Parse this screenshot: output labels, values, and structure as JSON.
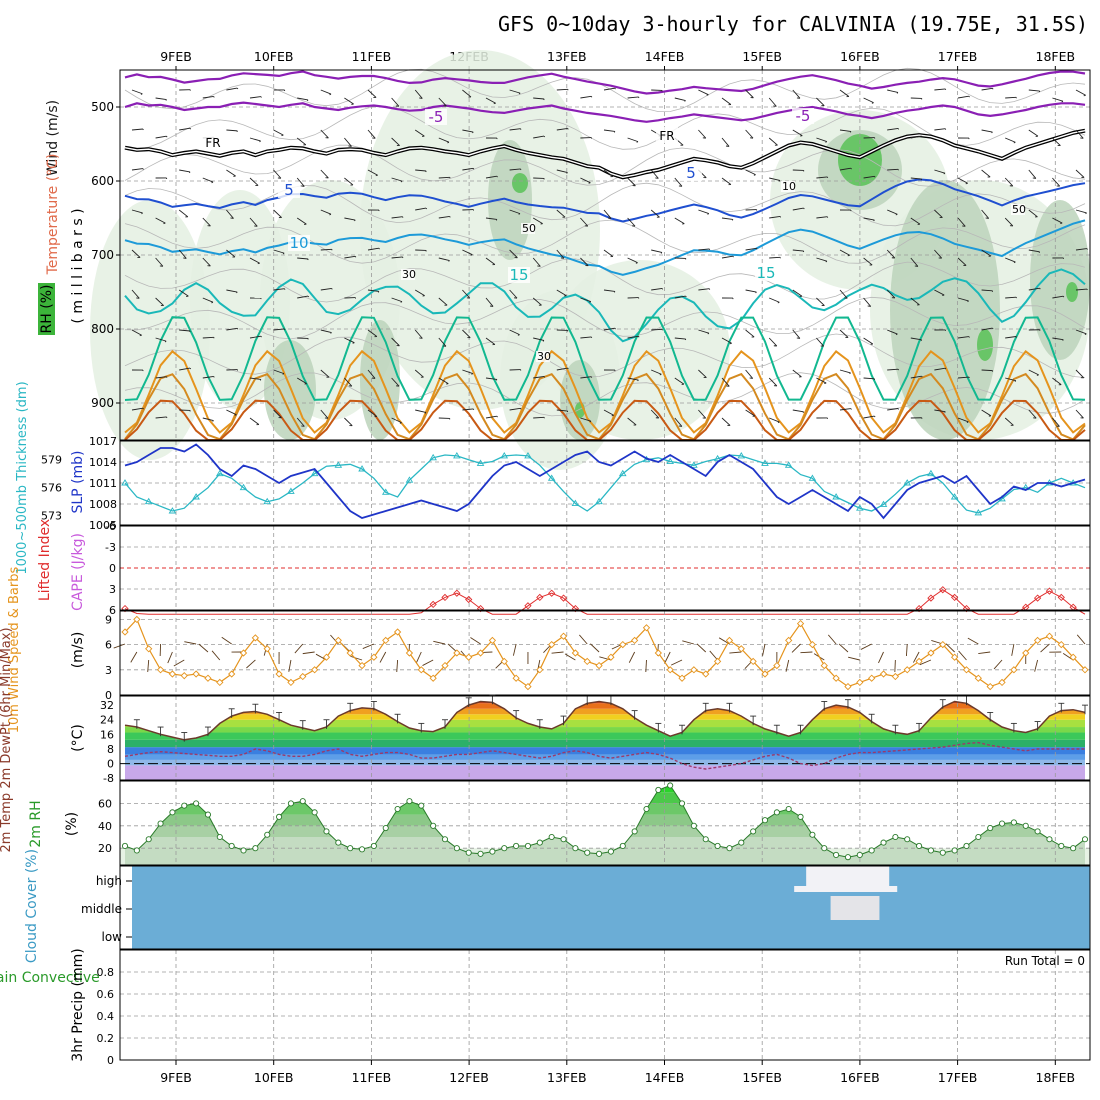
{
  "title": "GFS 0~10day 3-hourly for CALVINIA (19.75E, 31.5S)",
  "dates": [
    "9FEB",
    "10FEB",
    "11FEB",
    "12FEB",
    "13FEB",
    "14FEB",
    "15FEB",
    "16FEB",
    "17FEB",
    "18FEB"
  ],
  "colors": {
    "frame": "#000000",
    "grid": "#9a9a9a",
    "rh_light": "#e4f0e2",
    "rh_mid": "#bcd4bb",
    "rh_dark": "#7fb07c",
    "rh_bright": "#59c257",
    "slp": "#1f35c8",
    "thick": "#2ab7c4",
    "cape": "#c85adc",
    "li": "#e02d2d",
    "wind10": "#e5941d",
    "barb": "#5a3a1a",
    "temp": "#6b3a2a",
    "dew": "#9b3a6a",
    "cloud_bg": "#6badd6",
    "cloud": "#f2f2f6",
    "rh2m": "#5cc85a"
  },
  "chart_data": [
    {
      "panel": "upper_air",
      "type": "heatmap",
      "ylabel_wind": "Wind (m/s)",
      "ylabel_temp": "Temperature (°C)",
      "ylabel_rh": "RH (%)",
      "ylabel_p": "( m i l l i b a r s )",
      "yticks": [
        500,
        600,
        700,
        800,
        900
      ],
      "ylim": [
        450,
        950
      ],
      "contour_labels": [
        "-5",
        "-5",
        "FR",
        "FR",
        "5",
        "5",
        "10",
        "15",
        "15",
        "10",
        "50",
        "30",
        "30",
        "50"
      ],
      "freezing_level_mb": [
        555,
        558,
        557,
        560,
        565,
        562,
        560,
        563,
        566,
        562,
        560,
        565,
        560,
        558,
        555,
        556,
        560,
        563,
        558,
        557,
        558,
        562,
        565,
        560,
        556,
        555,
        557,
        560,
        562,
        565,
        560,
        556,
        553,
        558,
        562,
        565,
        568,
        570,
        575,
        580,
        582,
        590,
        595,
        592,
        588,
        585,
        580,
        575,
        570,
        572,
        575,
        580,
        582,
        576,
        568,
        560,
        552,
        548,
        550,
        555,
        560,
        565,
        568,
        560,
        552,
        545,
        540,
        538,
        540,
        545,
        552,
        556,
        560,
        565,
        570,
        562,
        555,
        550,
        545,
        540,
        535,
        532
      ],
      "iso_minus5_mb": [
        500,
        495,
        498,
        497,
        500,
        504,
        502,
        500,
        500,
        496,
        494,
        496,
        498,
        500,
        497,
        495,
        500,
        502,
        504,
        501,
        499,
        498,
        500,
        503,
        505,
        504,
        500,
        498,
        500,
        502,
        505,
        507,
        508,
        505,
        502,
        500,
        498,
        502,
        505,
        508,
        510,
        512,
        515,
        518,
        520,
        518,
        515,
        513,
        510,
        512,
        514,
        516,
        518,
        516,
        512,
        508,
        505,
        502,
        500,
        503,
        506,
        510,
        512,
        515,
        512,
        508,
        505,
        503,
        500,
        498,
        500,
        505,
        510,
        512,
        510,
        507,
        504,
        500,
        497,
        495,
        495,
        497
      ]
    },
    {
      "panel": "slp_thickness",
      "type": "line",
      "ylabel_left": "1000~500mb\nThickness (dm)",
      "ylabel_right": "SLP (mb)",
      "yticks_left": [
        573,
        576,
        579
      ],
      "yticks_right": [
        1005,
        1008,
        1011,
        1014,
        1017
      ],
      "series": [
        {
          "name": "SLP (mb)",
          "ylim": [
            1005,
            1017
          ],
          "values": [
            1013.5,
            1014,
            1015,
            1016,
            1016,
            1015.5,
            1016.5,
            1015,
            1013,
            1012,
            1013.5,
            1013,
            1012,
            1011,
            1012,
            1012.5,
            1013,
            1011,
            1009,
            1007,
            1006,
            1006.5,
            1007,
            1007.5,
            1008,
            1008.5,
            1008,
            1007.5,
            1007,
            1008,
            1010,
            1012,
            1013.5,
            1014,
            1013,
            1012,
            1013,
            1014,
            1015,
            1015.5,
            1014,
            1013.5,
            1014.5,
            1015.5,
            1014.5,
            1014,
            1015,
            1014,
            1013,
            1012,
            1014,
            1015,
            1014,
            1013,
            1011,
            1009,
            1008,
            1009,
            1010,
            1009,
            1008,
            1007,
            1009,
            1008,
            1006,
            1008,
            1010,
            1011,
            1011.5,
            1012,
            1011,
            1012,
            1010,
            1008,
            1009,
            1010.5,
            1010,
            1011,
            1011,
            1010.5,
            1011,
            1011.5
          ]
        },
        {
          "name": "Thickness (dm)",
          "ylim": [
            572,
            581
          ],
          "values": [
            576.5,
            575,
            574.5,
            574,
            573.5,
            573.8,
            575,
            576,
            577.5,
            577,
            576,
            575,
            574.5,
            574.8,
            575.6,
            576.5,
            577.5,
            578.3,
            578.4,
            578.5,
            578,
            577,
            575.5,
            575,
            576.8,
            578,
            579.2,
            579.5,
            579.4,
            579,
            578.6,
            578.8,
            579.4,
            579.5,
            579.4,
            578.4,
            577,
            575.6,
            574.3,
            573.5,
            574.5,
            576,
            577.5,
            578.5,
            579,
            579.2,
            578.8,
            578.6,
            578.4,
            578.8,
            579.1,
            579.5,
            579.4,
            579,
            578.6,
            578.6,
            578.4,
            577.4,
            577,
            575.6,
            575,
            574.4,
            573.8,
            573.5,
            574.2,
            575.3,
            576.5,
            577.2,
            577.5,
            576.5,
            575,
            573.6,
            573.3,
            573.8,
            574.8,
            575.8,
            576,
            575.5,
            576.5,
            577,
            576.5,
            576
          ]
        }
      ]
    },
    {
      "panel": "cape_li",
      "type": "line",
      "ylabel_left": "CAPE (J/kg)",
      "ylabel_right": "Lifted Index",
      "yticks": [
        -6,
        -3,
        0,
        3,
        6
      ],
      "ylim": [
        6,
        -6
      ],
      "series": [
        {
          "name": "Lifted Index",
          "values": [
            5.8,
            6.5,
            6.6,
            6.6,
            6.6,
            6.6,
            6.6,
            6.6,
            6.6,
            6.6,
            6.6,
            6.6,
            6.6,
            6.6,
            6.6,
            6.6,
            6.6,
            6.6,
            6.6,
            6.6,
            6.6,
            6.6,
            6.6,
            6.6,
            6.6,
            6.4,
            5.2,
            4.2,
            3.6,
            4.5,
            5.8,
            6.6,
            6.6,
            6.6,
            5.4,
            4.2,
            3.6,
            4.3,
            5.8,
            6.6,
            6.6,
            6.6,
            6.6,
            6.6,
            6.6,
            6.6,
            6.6,
            6.6,
            6.6,
            6.6,
            6.6,
            6.6,
            6.6,
            6.6,
            6.6,
            6.6,
            6.6,
            6.6,
            6.6,
            6.6,
            6.6,
            6.6,
            6.6,
            6.6,
            6.6,
            6.6,
            6.6,
            5.8,
            4.3,
            3.1,
            4.2,
            5.8,
            6.6,
            6.6,
            6.6,
            6.6,
            5.6,
            4.3,
            3.3,
            4.2,
            5.6,
            6.6
          ]
        }
      ]
    },
    {
      "panel": "wind10m",
      "type": "line",
      "ylabel_left": "10m Wind\nSpeed\n& Barbs",
      "ylabel_right": "(m/s)",
      "yticks": [
        0,
        3,
        6,
        9
      ],
      "ylim": [
        0,
        10
      ],
      "series": [
        {
          "name": "10m Wind Speed",
          "values": [
            7.5,
            9,
            5.5,
            3,
            2.5,
            2.3,
            2.5,
            2,
            1.5,
            2.5,
            5,
            6.8,
            5.5,
            2.5,
            1.5,
            2.2,
            3,
            4.5,
            6.5,
            5,
            3.5,
            4.5,
            6.5,
            7.5,
            5,
            3,
            2,
            3.5,
            5,
            4.5,
            5,
            6.5,
            4,
            2,
            1,
            3,
            6,
            7,
            5,
            4,
            3.5,
            4.5,
            6,
            6.5,
            8,
            5,
            3,
            2,
            3,
            2.5,
            4,
            6.5,
            5.5,
            4,
            2.5,
            3.5,
            6.5,
            8.5,
            6,
            3.5,
            2,
            1,
            1.5,
            2,
            2.5,
            2.2,
            3,
            4,
            5,
            6,
            4.5,
            3,
            2,
            1,
            1.5,
            3,
            5,
            6.5,
            7,
            6,
            4.5,
            3
          ]
        }
      ]
    },
    {
      "panel": "temp2m",
      "type": "area",
      "ylabel_left": "2m Temp\n2m DewPt\n(6hr Min/Max)",
      "ylabel_right": "(°C)",
      "yticks": [
        -8,
        0,
        8,
        16,
        24,
        32
      ],
      "ylim": [
        -9,
        37
      ],
      "series": [
        {
          "name": "2m Temp",
          "values": [
            21,
            20,
            18,
            16,
            14.5,
            13,
            14,
            16,
            22,
            26,
            28,
            28.5,
            27,
            24,
            21,
            19.5,
            18,
            20,
            26,
            29,
            30.5,
            30,
            27,
            23,
            19.5,
            18,
            17.5,
            20,
            28,
            32,
            34,
            33.5,
            30,
            25,
            22,
            20,
            19,
            22,
            30,
            33,
            34,
            33,
            30,
            25,
            21,
            18,
            15,
            17,
            24,
            29,
            30,
            29,
            26,
            22,
            19,
            17,
            15,
            17,
            24,
            30,
            32,
            31,
            28,
            23,
            19,
            17,
            16,
            18,
            25,
            31,
            34,
            33,
            29,
            24,
            20,
            18,
            17,
            19,
            26,
            29,
            29.5,
            28
          ]
        },
        {
          "name": "2m DewPt",
          "values": [
            4,
            5,
            6,
            6.5,
            6,
            5.5,
            5,
            4.5,
            4,
            4,
            5,
            8,
            7,
            5,
            4,
            4,
            5,
            7,
            8,
            5,
            4,
            5,
            6,
            6,
            5,
            3,
            3,
            4,
            5,
            5,
            6,
            7,
            6,
            5,
            4,
            3,
            4,
            6,
            7,
            6,
            4,
            3,
            4,
            5,
            6,
            5,
            3,
            0,
            -2,
            -3,
            -2,
            -1,
            0,
            2,
            4,
            5,
            3,
            0,
            -1,
            0,
            3,
            5,
            6,
            6,
            6.5,
            7,
            7.5,
            8,
            8.5,
            9,
            10,
            11,
            11.5,
            10,
            9,
            8,
            7,
            8,
            8,
            8,
            8,
            8
          ]
        }
      ]
    },
    {
      "panel": "rh2m",
      "type": "area",
      "ylabel_left": "2m RH",
      "ylabel_right": "(%)",
      "yticks": [
        20,
        40,
        60
      ],
      "ylim": [
        5,
        80
      ],
      "series": [
        {
          "name": "2m RH",
          "values": [
            22,
            18,
            28,
            42,
            52,
            58,
            60,
            50,
            30,
            22,
            18,
            20,
            32,
            48,
            60,
            62,
            52,
            35,
            25,
            20,
            19,
            22,
            38,
            55,
            62,
            58,
            40,
            28,
            20,
            16,
            15,
            17,
            20,
            22,
            22,
            25,
            30,
            28,
            20,
            16,
            15,
            17,
            22,
            35,
            55,
            72,
            76,
            60,
            40,
            28,
            22,
            20,
            25,
            35,
            45,
            52,
            55,
            48,
            32,
            20,
            14,
            12,
            14,
            18,
            25,
            30,
            28,
            22,
            18,
            16,
            18,
            22,
            30,
            38,
            42,
            43,
            40,
            35,
            28,
            22,
            20,
            28
          ]
        }
      ]
    },
    {
      "panel": "cloud",
      "type": "heatmap",
      "ylabel": "Cloud Cover\n(%)",
      "levels": [
        "high",
        "middle",
        "low"
      ],
      "high_cloud_x": [
        15.45,
        16.3
      ],
      "middle_cloud_x": [
        15.7,
        16.2
      ]
    },
    {
      "panel": "precip",
      "type": "bar",
      "ylabel_left": "Total / Rain\nConvective",
      "ylabel_right": "3hr Precip (mm)",
      "yticks": [
        0,
        0.2,
        0.4,
        0.6,
        0.8
      ],
      "ylim": [
        0,
        1.0
      ],
      "run_total": "Run Total = 0",
      "values": []
    }
  ]
}
